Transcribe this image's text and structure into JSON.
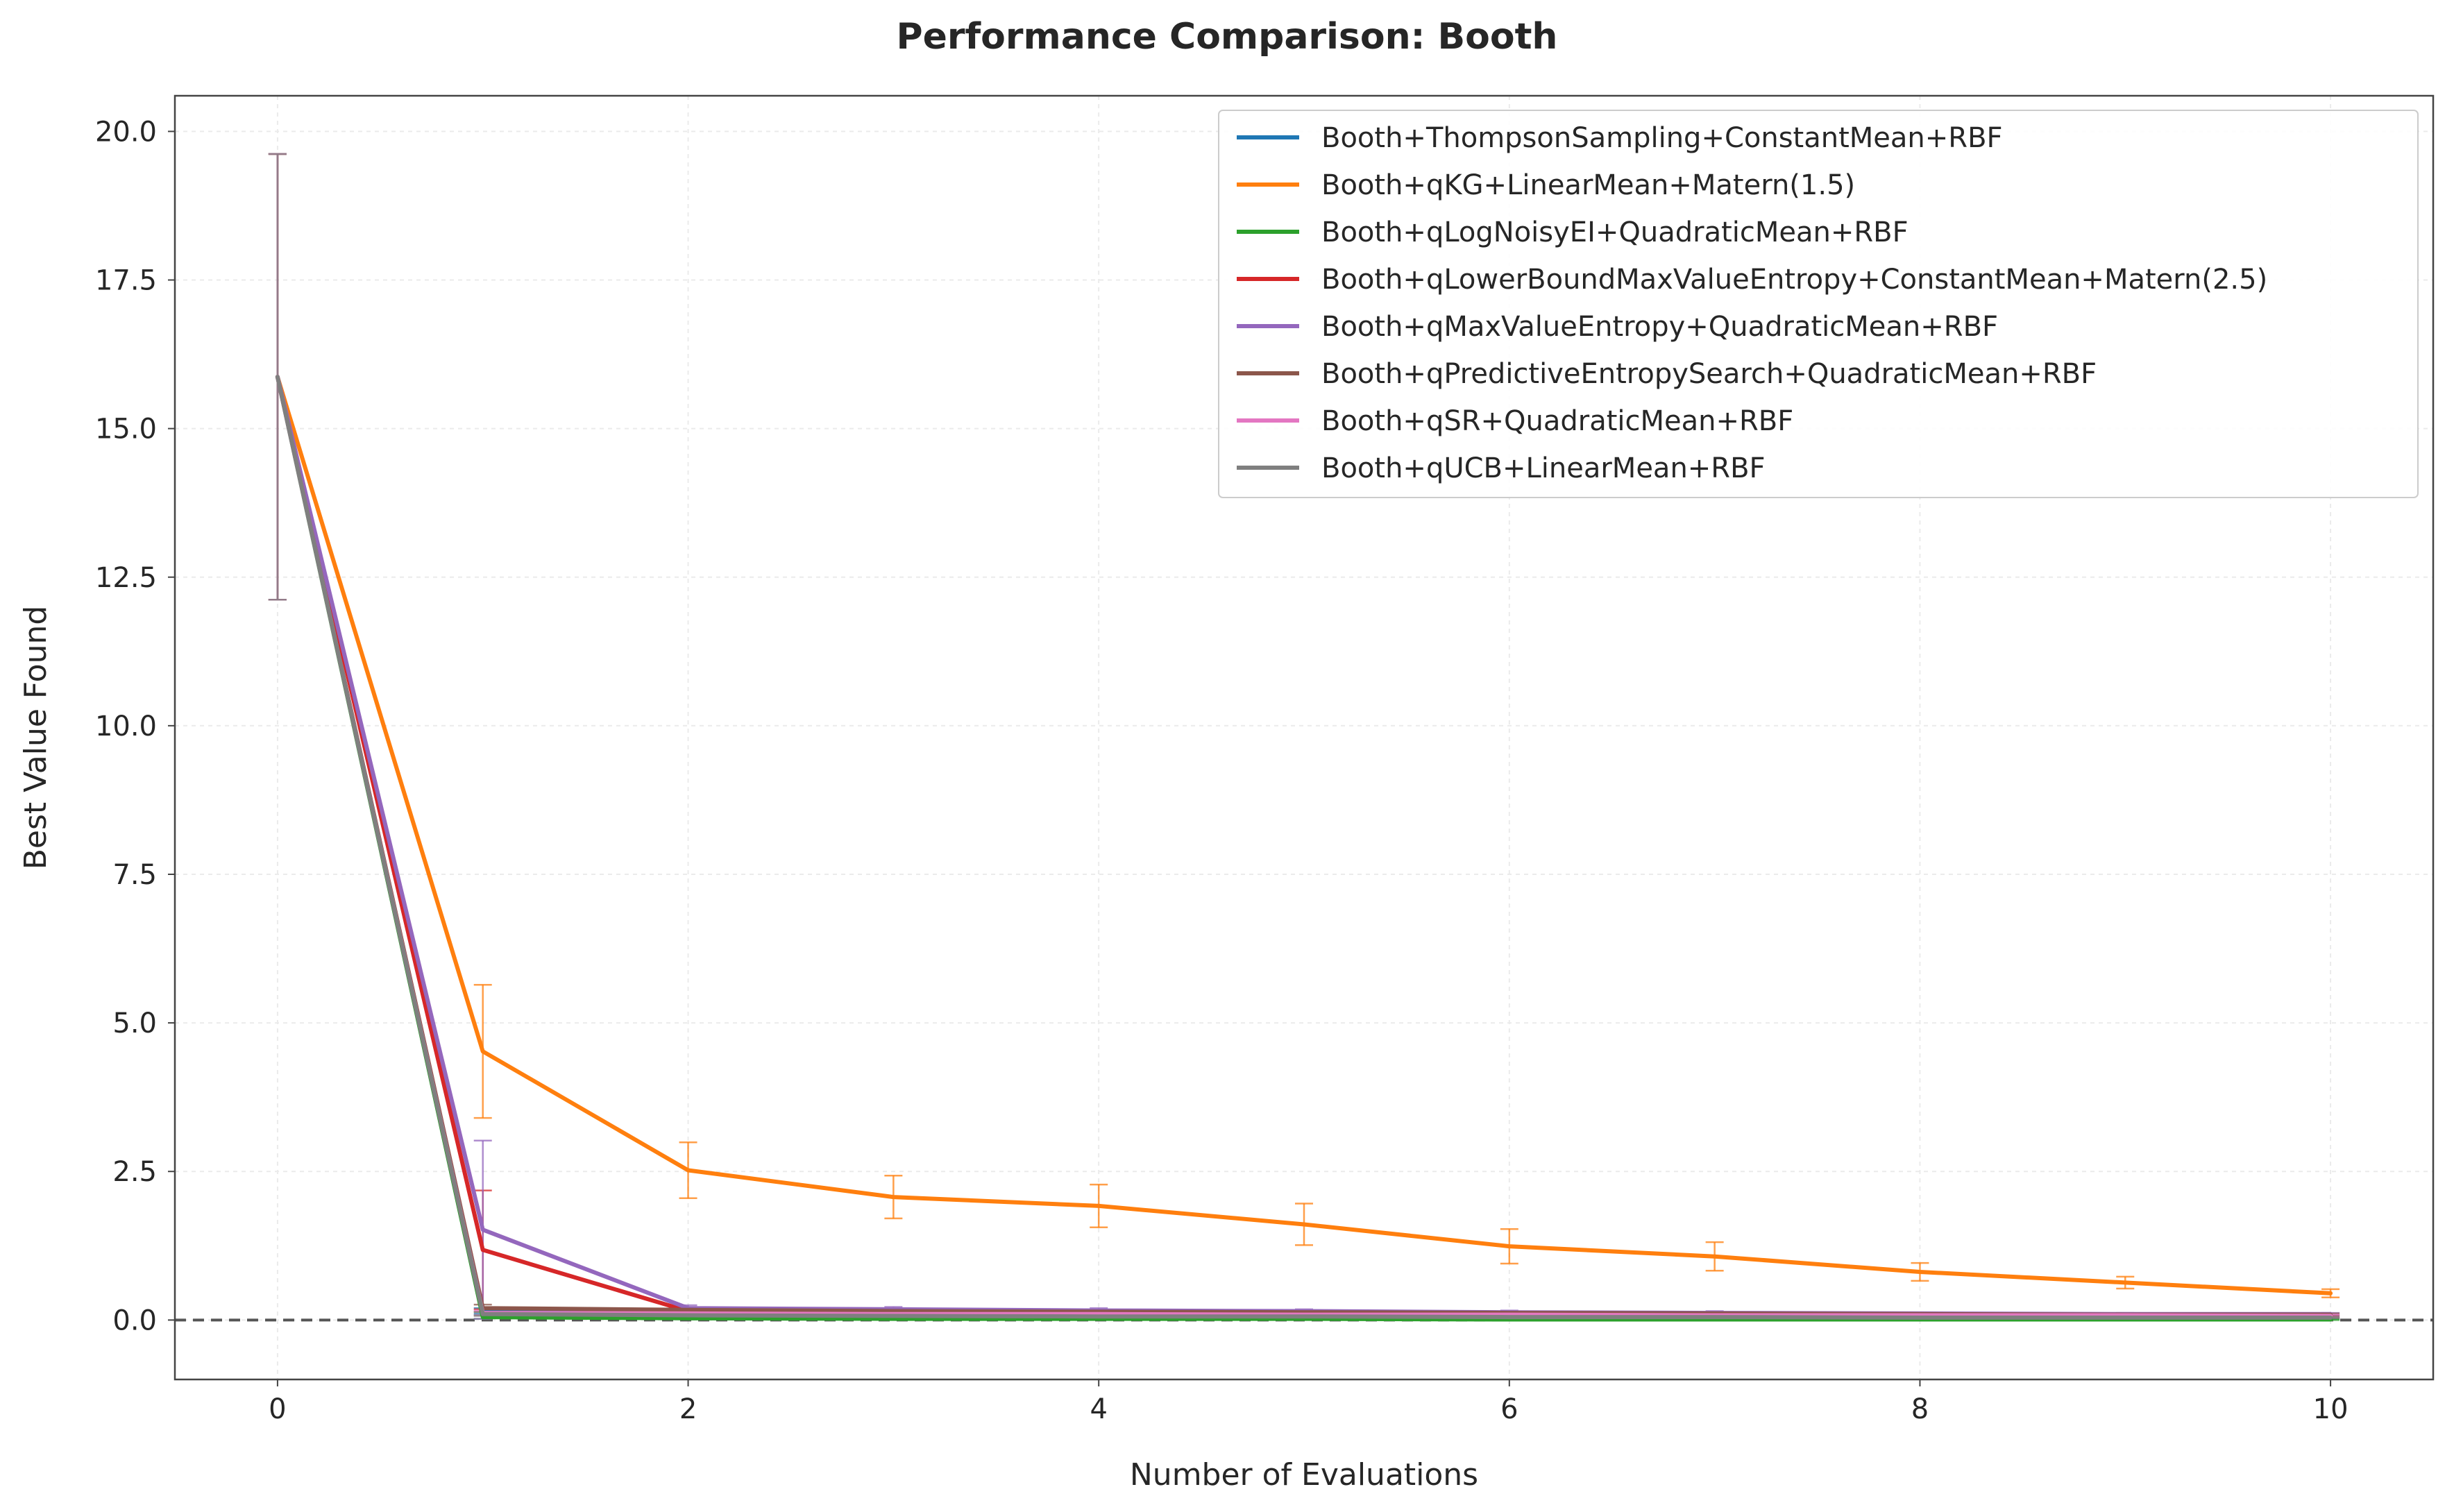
{
  "chart_data": {
    "type": "line",
    "title": "Performance Comparison: Booth",
    "xlabel": "Number of Evaluations",
    "ylabel": "Best Value Found",
    "xlim": [
      -0.5,
      10.5
    ],
    "ylim": [
      -1.0,
      20.6
    ],
    "xticks": [
      0,
      2,
      4,
      6,
      8,
      10
    ],
    "xtick_labels": [
      "0",
      "2",
      "4",
      "6",
      "8",
      "10"
    ],
    "yticks": [
      0,
      2.5,
      5,
      7.5,
      10,
      12.5,
      15,
      17.5,
      20
    ],
    "ytick_labels": [
      "0.0",
      "2.5",
      "5.0",
      "7.5",
      "10.0",
      "12.5",
      "15.0",
      "17.5",
      "20.0"
    ],
    "grid": true,
    "legend_position": "top-right",
    "reference_line": {
      "y": 0,
      "style": "dashed",
      "color": "#555555"
    },
    "x": [
      0,
      1,
      2,
      3,
      4,
      5,
      6,
      7,
      8,
      9,
      10
    ],
    "series": [
      {
        "name": "Booth+ThompsonSampling+ConstantMean+RBF",
        "color": "#1f77b4",
        "values": [
          15.87,
          0.15,
          0.1,
          0.08,
          0.07,
          0.06,
          0.05,
          0.04,
          0.04,
          0.03,
          0.03
        ],
        "err": [
          3.75,
          0.05,
          0.03,
          0.02,
          0.02,
          0.02,
          0.02,
          0.01,
          0.01,
          0.01,
          0.01
        ]
      },
      {
        "name": "Booth+qKG+LinearMean+Matern(1.5)",
        "color": "#ff7f0e",
        "values": [
          15.87,
          4.52,
          2.52,
          2.07,
          1.92,
          1.61,
          1.24,
          1.07,
          0.81,
          0.63,
          0.45
        ],
        "err": [
          3.75,
          1.12,
          0.47,
          0.36,
          0.36,
          0.35,
          0.29,
          0.24,
          0.15,
          0.1,
          0.07
        ]
      },
      {
        "name": "Booth+qLogNoisyEI+QuadraticMean+RBF",
        "color": "#2ca02c",
        "values": [
          15.87,
          0.05,
          0.03,
          0.02,
          0.02,
          0.02,
          0.01,
          0.01,
          0.01,
          0.01,
          0.01
        ],
        "err": [
          3.75,
          0.03,
          0.02,
          0.01,
          0.01,
          0.01,
          0.01,
          0.01,
          0.01,
          0.01,
          0.01
        ]
      },
      {
        "name": "Booth+qLowerBoundMaxValueEntropy+ConstantMean+Matern(2.5)",
        "color": "#d62728",
        "values": [
          15.87,
          1.18,
          0.15,
          0.14,
          0.12,
          0.11,
          0.1,
          0.09,
          0.08,
          0.07,
          0.06
        ],
        "err": [
          3.75,
          1.0,
          0.04,
          0.03,
          0.03,
          0.03,
          0.02,
          0.02,
          0.02,
          0.02,
          0.02
        ]
      },
      {
        "name": "Booth+qMaxValueEntropy+QuadraticMean+RBF",
        "color": "#9467bd",
        "values": [
          15.87,
          1.52,
          0.2,
          0.18,
          0.16,
          0.15,
          0.13,
          0.12,
          0.11,
          0.1,
          0.1
        ],
        "err": [
          3.75,
          1.5,
          0.05,
          0.04,
          0.04,
          0.03,
          0.03,
          0.03,
          0.02,
          0.02,
          0.02
        ]
      },
      {
        "name": "Booth+qPredictiveEntropySearch+QuadraticMean+RBF",
        "color": "#8c564b",
        "values": [
          15.87,
          0.2,
          0.17,
          0.15,
          0.14,
          0.13,
          0.12,
          0.11,
          0.1,
          0.09,
          0.09
        ],
        "err": [
          3.75,
          0.06,
          0.04,
          0.03,
          0.03,
          0.03,
          0.02,
          0.02,
          0.02,
          0.02,
          0.02
        ]
      },
      {
        "name": "Booth+qSR+QuadraticMean+RBF",
        "color": "#e377c2",
        "values": [
          15.87,
          0.12,
          0.11,
          0.1,
          0.1,
          0.09,
          0.09,
          0.08,
          0.08,
          0.08,
          0.07
        ],
        "err": [
          3.75,
          0.04,
          0.03,
          0.02,
          0.02,
          0.02,
          0.02,
          0.02,
          0.02,
          0.02,
          0.02
        ]
      },
      {
        "name": "Booth+qUCB+LinearMean+RBF",
        "color": "#7f7f7f",
        "values": [
          15.87,
          0.1,
          0.08,
          0.07,
          0.06,
          0.06,
          0.05,
          0.05,
          0.04,
          0.04,
          0.04
        ],
        "err": [
          3.75,
          0.03,
          0.02,
          0.02,
          0.02,
          0.02,
          0.01,
          0.01,
          0.01,
          0.01,
          0.01
        ]
      }
    ]
  }
}
